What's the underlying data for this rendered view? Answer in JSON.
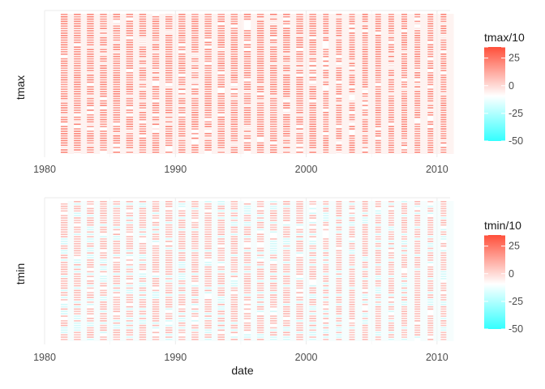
{
  "chart_data": [
    {
      "type": "heatmap",
      "ylabel": "tmax",
      "xlabel": "",
      "x_ticks": [
        1980,
        1990,
        2000,
        2010
      ],
      "xlim": [
        1980,
        2011
      ],
      "x_range": [
        1981,
        2010
      ],
      "legend": {
        "title": "tmax/10",
        "ticks": [
          35,
          25,
          0,
          -25,
          -50
        ],
        "tick_labels": [
          "",
          "25",
          "0",
          "-25",
          "-50"
        ],
        "range": [
          -50,
          35
        ],
        "colors": {
          "low": "#33ffff",
          "mid": "#ffffff",
          "high": "#ff4f3a"
        },
        "placement": "right"
      },
      "dominant_color": "#fb8072",
      "grid": true
    },
    {
      "type": "heatmap",
      "ylabel": "tmin",
      "xlabel": "date",
      "x_ticks": [
        1980,
        1990,
        2000,
        2010
      ],
      "xlim": [
        1980,
        2011
      ],
      "x_range": [
        1981,
        2010
      ],
      "legend": {
        "title": "tmin/10",
        "ticks": [
          35,
          25,
          0,
          -25,
          -50
        ],
        "tick_labels": [
          "",
          "25",
          "0",
          "-25",
          "-50"
        ],
        "range": [
          -50,
          35
        ],
        "colors": {
          "low": "#33ffff",
          "mid": "#ffffff",
          "high": "#ff4f3a"
        },
        "placement": "right"
      },
      "dominant_color": "#fbb4ae",
      "grid": true
    }
  ]
}
